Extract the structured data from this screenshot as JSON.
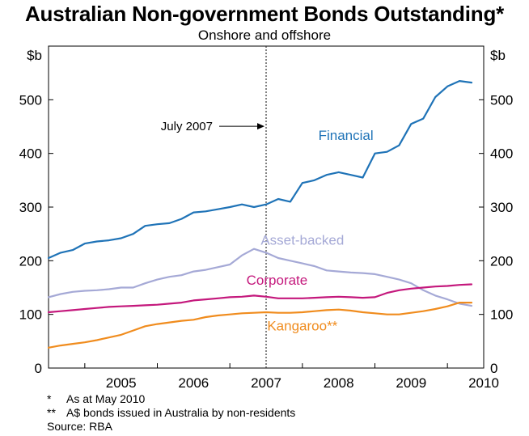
{
  "title": "Australian Non-government Bonds Outstanding*",
  "subtitle": "Onshore and offshore",
  "chart_data": {
    "type": "line",
    "title": "Australian Non-government Bonds Outstanding*",
    "subtitle": "Onshore and offshore",
    "left_axis_unit": "$b",
    "right_axis_unit": "$b",
    "ylim": [
      0,
      600
    ],
    "yticks": [
      0,
      100,
      200,
      300,
      400,
      500
    ],
    "xlim": [
      2004.5,
      2010.5
    ],
    "x_tick_labels": [
      "2005",
      "2006",
      "2007",
      "2008",
      "2009",
      "2010"
    ],
    "grid": false,
    "vertical_marker": {
      "x": 2007.5,
      "label": "July 2007"
    },
    "series": [
      {
        "name": "Financial",
        "color": "#1f73b7",
        "x": [
          2004.5,
          2004.667,
          2004.833,
          2005.0,
          2005.167,
          2005.333,
          2005.5,
          2005.667,
          2005.833,
          2006.0,
          2006.167,
          2006.333,
          2006.5,
          2006.667,
          2006.833,
          2007.0,
          2007.167,
          2007.333,
          2007.5,
          2007.667,
          2007.833,
          2008.0,
          2008.167,
          2008.333,
          2008.5,
          2008.667,
          2008.833,
          2009.0,
          2009.167,
          2009.333,
          2009.5,
          2009.667,
          2009.833,
          2010.0,
          2010.167,
          2010.333
        ],
        "values": [
          205,
          215,
          220,
          232,
          236,
          238,
          242,
          250,
          265,
          268,
          270,
          278,
          290,
          292,
          296,
          300,
          305,
          300,
          305,
          315,
          310,
          345,
          350,
          360,
          365,
          360,
          355,
          400,
          403,
          415,
          455,
          465,
          505,
          525,
          535,
          532
        ]
      },
      {
        "name": "Asset-backed",
        "color": "#a5a9d6",
        "x": [
          2004.5,
          2004.667,
          2004.833,
          2005.0,
          2005.167,
          2005.333,
          2005.5,
          2005.667,
          2005.833,
          2006.0,
          2006.167,
          2006.333,
          2006.5,
          2006.667,
          2006.833,
          2007.0,
          2007.167,
          2007.333,
          2007.5,
          2007.667,
          2007.833,
          2008.0,
          2008.167,
          2008.333,
          2008.5,
          2008.667,
          2008.833,
          2009.0,
          2009.167,
          2009.333,
          2009.5,
          2009.667,
          2009.833,
          2010.0,
          2010.167,
          2010.333
        ],
        "values": [
          132,
          138,
          142,
          144,
          145,
          147,
          150,
          150,
          158,
          165,
          170,
          173,
          180,
          183,
          188,
          193,
          210,
          222,
          215,
          205,
          200,
          195,
          190,
          182,
          180,
          178,
          177,
          175,
          170,
          165,
          158,
          145,
          135,
          128,
          120,
          116
        ]
      },
      {
        "name": "Corporate",
        "color": "#c4187c",
        "x": [
          2004.5,
          2004.667,
          2004.833,
          2005.0,
          2005.167,
          2005.333,
          2005.5,
          2005.667,
          2005.833,
          2006.0,
          2006.167,
          2006.333,
          2006.5,
          2006.667,
          2006.833,
          2007.0,
          2007.167,
          2007.333,
          2007.5,
          2007.667,
          2007.833,
          2008.0,
          2008.167,
          2008.333,
          2008.5,
          2008.667,
          2008.833,
          2009.0,
          2009.167,
          2009.333,
          2009.5,
          2009.667,
          2009.833,
          2010.0,
          2010.167,
          2010.333
        ],
        "values": [
          104,
          106,
          108,
          110,
          112,
          114,
          115,
          116,
          117,
          118,
          120,
          122,
          126,
          128,
          130,
          132,
          133,
          135,
          133,
          130,
          130,
          130,
          131,
          132,
          133,
          132,
          131,
          132,
          140,
          145,
          148,
          150,
          152,
          153,
          155,
          156
        ]
      },
      {
        "name": "Kangaroo**",
        "color": "#f08c1e",
        "x": [
          2004.5,
          2004.667,
          2004.833,
          2005.0,
          2005.167,
          2005.333,
          2005.5,
          2005.667,
          2005.833,
          2006.0,
          2006.167,
          2006.333,
          2006.5,
          2006.667,
          2006.833,
          2007.0,
          2007.167,
          2007.333,
          2007.5,
          2007.667,
          2007.833,
          2008.0,
          2008.167,
          2008.333,
          2008.5,
          2008.667,
          2008.833,
          2009.0,
          2009.167,
          2009.333,
          2009.5,
          2009.667,
          2009.833,
          2010.0,
          2010.167,
          2010.333
        ],
        "values": [
          38,
          42,
          45,
          48,
          52,
          57,
          62,
          70,
          78,
          82,
          85,
          88,
          90,
          95,
          98,
          100,
          102,
          103,
          104,
          103,
          103,
          104,
          106,
          108,
          109,
          107,
          104,
          102,
          100,
          100,
          103,
          106,
          110,
          115,
          122,
          122
        ]
      }
    ],
    "series_labels": [
      {
        "series": "Financial",
        "text": "Financial",
        "x": 2008.6,
        "y": 425
      },
      {
        "series": "Asset-backed",
        "text": "Asset-backed",
        "x": 2008.0,
        "y": 230
      },
      {
        "series": "Corporate",
        "text": "Corporate",
        "x": 2007.65,
        "y": 155
      },
      {
        "series": "Kangaroo**",
        "text": "Kangaroo**",
        "x": 2008.0,
        "y": 70
      }
    ]
  },
  "notes": [
    {
      "mark": "*",
      "text": "As at May 2010"
    },
    {
      "mark": "**",
      "text": "A$ bonds issued in Australia by non-residents"
    }
  ],
  "source": "Source: RBA"
}
